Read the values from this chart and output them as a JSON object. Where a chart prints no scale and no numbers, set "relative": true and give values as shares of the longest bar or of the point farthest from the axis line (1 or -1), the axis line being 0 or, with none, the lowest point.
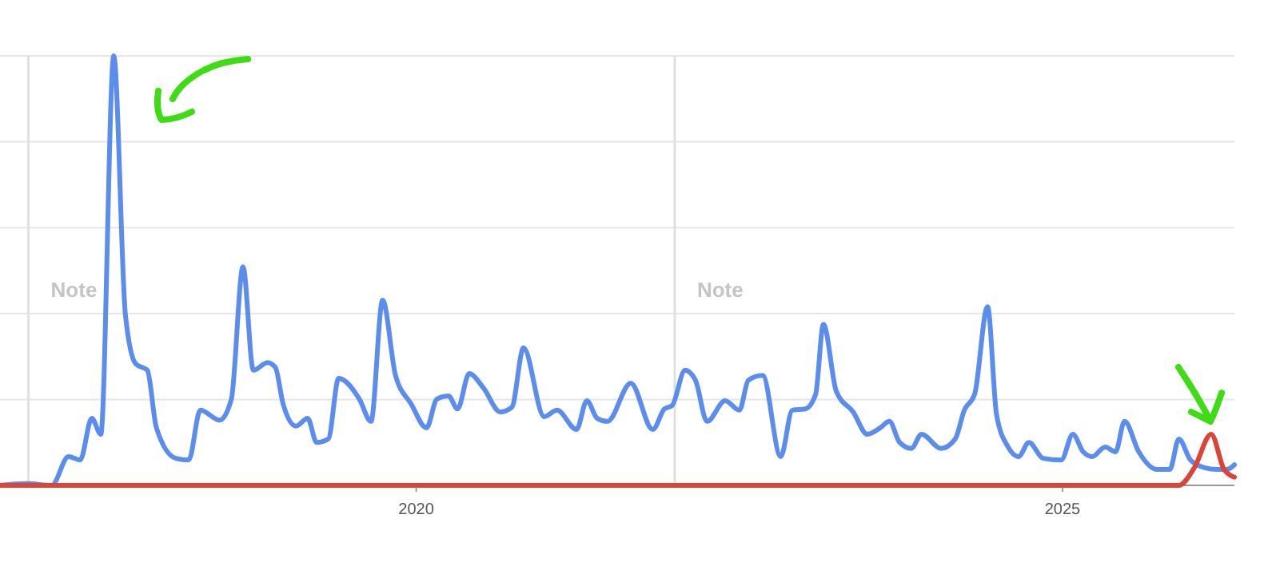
{
  "chart_data": {
    "type": "line",
    "relative": true,
    "xlim": [
      2016.78,
      2026.33
    ],
    "xticks": [
      2020,
      2025
    ],
    "grid": "y",
    "line_style": "solid",
    "marker": "none",
    "ref_lines": [
      {
        "axis": "x",
        "value": 2017.0,
        "label": "Note",
        "color": "#e0e0e0"
      },
      {
        "axis": "x",
        "value": 2022.0,
        "label": "Note",
        "color": "#e0e0e0"
      }
    ],
    "series": [
      {
        "color": "#5b8def",
        "x": [
          2016.78,
          2016.99,
          2017.18,
          2017.31,
          2017.4,
          2017.49,
          2017.56,
          2017.66,
          2017.75,
          2017.83,
          2017.92,
          2017.99,
          2018.14,
          2018.24,
          2018.33,
          2018.48,
          2018.57,
          2018.66,
          2018.74,
          2018.85,
          2018.91,
          2018.97,
          2019.07,
          2019.16,
          2019.23,
          2019.32,
          2019.4,
          2019.56,
          2019.65,
          2019.74,
          2019.84,
          2019.96,
          2020.08,
          2020.16,
          2020.25,
          2020.32,
          2020.41,
          2020.52,
          2020.65,
          2020.74,
          2020.83,
          2020.99,
          2021.09,
          2021.24,
          2021.32,
          2021.4,
          2021.48,
          2021.66,
          2021.83,
          2021.92,
          2021.98,
          2022.08,
          2022.16,
          2022.25,
          2022.39,
          2022.5,
          2022.57,
          2022.68,
          2022.82,
          2022.91,
          2023.01,
          2023.09,
          2023.15,
          2023.25,
          2023.38,
          2023.49,
          2023.59,
          2023.66,
          2023.74,
          2023.83,
          2023.91,
          2024.06,
          2024.17,
          2024.24,
          2024.32,
          2024.42,
          2024.49,
          2024.58,
          2024.66,
          2024.74,
          2024.85,
          2024.99,
          2025.08,
          2025.16,
          2025.23,
          2025.33,
          2025.41,
          2025.48,
          2025.59,
          2025.73,
          2025.83,
          2025.9,
          2025.99,
          2026.1,
          2026.19,
          2026.27,
          2026.33
        ],
        "values": [
          0,
          0.004,
          0,
          0.067,
          0.059,
          0.156,
          0.119,
          1,
          0.398,
          0.283,
          0.268,
          0.134,
          0.063,
          0.059,
          0.175,
          0.152,
          0.201,
          0.509,
          0.268,
          0.286,
          0.275,
          0.19,
          0.138,
          0.156,
          0.1,
          0.108,
          0.249,
          0.201,
          0.149,
          0.431,
          0.256,
          0.19,
          0.134,
          0.201,
          0.208,
          0.178,
          0.26,
          0.227,
          0.171,
          0.182,
          0.32,
          0.16,
          0.175,
          0.13,
          0.197,
          0.156,
          0.149,
          0.238,
          0.13,
          0.178,
          0.186,
          0.268,
          0.245,
          0.149,
          0.197,
          0.175,
          0.245,
          0.256,
          0.067,
          0.175,
          0.178,
          0.212,
          0.375,
          0.219,
          0.171,
          0.119,
          0.134,
          0.149,
          0.1,
          0.086,
          0.119,
          0.086,
          0.108,
          0.175,
          0.212,
          0.416,
          0.164,
          0.089,
          0.067,
          0.1,
          0.063,
          0.059,
          0.119,
          0.078,
          0.067,
          0.089,
          0.078,
          0.149,
          0.078,
          0.037,
          0.037,
          0.108,
          0.059,
          0.041,
          0.037,
          0.037,
          0.048
        ]
      },
      {
        "color": "#db4437",
        "x": [
          2016.78,
          2025.9,
          2026.02,
          2026.15,
          2026.25,
          2026.33
        ],
        "values": [
          0,
          0,
          0.041,
          0.119,
          0.037,
          0.019
        ]
      }
    ]
  }
}
